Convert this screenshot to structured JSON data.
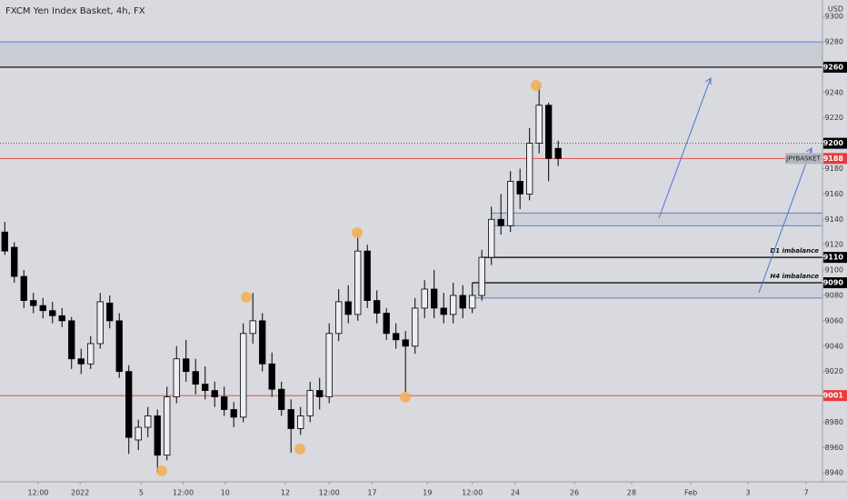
{
  "chart_data": {
    "type": "candlestick",
    "title": "FXCM Yen Index Basket, 4h, FX",
    "y_unit": "USD",
    "xlim": [
      -0.5,
      85.7
    ],
    "xticks": [
      {
        "value": 3.5,
        "label": "12:00"
      },
      {
        "value": 7.9,
        "label": "2022"
      },
      {
        "value": 14.3,
        "label": "5"
      },
      {
        "value": 18.7,
        "label": "12:00"
      },
      {
        "value": 23.1,
        "label": "10"
      },
      {
        "value": 29.4,
        "label": "12"
      },
      {
        "value": 34,
        "label": "12:00"
      },
      {
        "value": 38.5,
        "label": "17"
      },
      {
        "value": 44.3,
        "label": "19"
      },
      {
        "value": 49,
        "label": "12:00"
      },
      {
        "value": 53.5,
        "label": "24"
      },
      {
        "value": 59.7,
        "label": "26"
      },
      {
        "value": 65.7,
        "label": "28"
      },
      {
        "value": 71.9,
        "label": "Feb"
      },
      {
        "value": 77.9,
        "label": "3"
      },
      {
        "value": 84,
        "label": "7"
      }
    ],
    "ylim": [
      8933,
      9313
    ],
    "yticks": [
      8940,
      8960,
      8980,
      9000,
      9020,
      9040,
      9060,
      9080,
      9100,
      9120,
      9140,
      9160,
      9180,
      9200,
      9220,
      9240,
      9260,
      9280,
      9300
    ],
    "up_color": "#eceef1",
    "down_color": "#000000",
    "open": [
      9130,
      9118,
      9095,
      9076,
      9072,
      9068,
      9064,
      9060,
      9030,
      9026,
      9042,
      9074,
      9060,
      9020,
      8966,
      8976,
      8985,
      8954,
      9000,
      9030,
      9020,
      9010,
      9005,
      9000,
      8990,
      8984,
      9050,
      9060,
      9026,
      9006,
      8990,
      8975,
      8985,
      9005,
      9000,
      9050,
      9075,
      9065,
      9115,
      9076,
      9066,
      9050,
      9045,
      9040,
      9070,
      9085,
      9070,
      9065,
      9080,
      9070,
      9080,
      9110,
      9140,
      9135,
      9170,
      9160,
      9200,
      9230,
      9196
    ],
    "high": [
      9138,
      9122,
      9100,
      9082,
      9078,
      9075,
      9070,
      9063,
      9038,
      9048,
      9082,
      9080,
      9066,
      9025,
      8982,
      8992,
      8990,
      9008,
      9040,
      9045,
      9030,
      9024,
      9012,
      9008,
      8996,
      9058,
      9082,
      9066,
      9035,
      9012,
      8998,
      8992,
      9012,
      9015,
      9058,
      9085,
      9088,
      9128,
      9120,
      9084,
      9070,
      9058,
      9052,
      9078,
      9092,
      9100,
      9082,
      9090,
      9088,
      9090,
      9116,
      9150,
      9160,
      9178,
      9180,
      9212,
      9245,
      9232,
      9202
    ],
    "low": [
      9112,
      9090,
      9070,
      9066,
      9062,
      9058,
      9055,
      9022,
      9018,
      9022,
      9038,
      9054,
      9015,
      8955,
      8958,
      8968,
      8940,
      8950,
      8995,
      9012,
      9002,
      8998,
      8992,
      8985,
      8976,
      8980,
      9042,
      9020,
      9000,
      8985,
      8956,
      8970,
      8980,
      8990,
      8995,
      9044,
      9058,
      9060,
      9070,
      9058,
      9045,
      9038,
      9004,
      9034,
      9062,
      9062,
      9058,
      9058,
      9062,
      9066,
      9076,
      9104,
      9128,
      9130,
      9148,
      9155,
      9192,
      9170,
      9182
    ],
    "close": [
      9115,
      9095,
      9076,
      9072,
      9068,
      9064,
      9060,
      9030,
      9026,
      9042,
      9075,
      9060,
      9020,
      8968,
      8976,
      8985,
      8954,
      9000,
      9030,
      9020,
      9010,
      9005,
      9000,
      8990,
      8984,
      9050,
      9060,
      9026,
      9006,
      8990,
      8975,
      8985,
      9005,
      9000,
      9050,
      9075,
      9065,
      9115,
      9076,
      9066,
      9050,
      9045,
      9040,
      9070,
      9085,
      9070,
      9065,
      9080,
      9070,
      9080,
      9110,
      9140,
      9135,
      9170,
      9160,
      9200,
      9230,
      9188,
      9188
    ],
    "zones": [
      {
        "from": 9260,
        "to": 9280,
        "color": "#c3c6cd"
      },
      {
        "from": 9135,
        "to": 9145,
        "color": "#c9ccd4",
        "x0": 51
      },
      {
        "from": 9078,
        "to": 9090,
        "color": "#c9ccd4",
        "x0": 49
      }
    ],
    "levels": [
      {
        "value": 9280,
        "color": "#4a72d6"
      },
      {
        "value": 9260,
        "color": "#000000"
      },
      {
        "value": 9200,
        "color": "#555555",
        "dash": true
      },
      {
        "value": 9188,
        "color": "#e83b3b"
      },
      {
        "value": 9001,
        "color": "#e83b3b"
      },
      {
        "value": 9145,
        "color": "#4a72d6",
        "x0": 51
      },
      {
        "value": 9135,
        "color": "#4a72d6",
        "x0": 51
      },
      {
        "value": 9110,
        "color": "#000000",
        "x0": 50,
        "label": "D1 imbalance"
      },
      {
        "value": 9090,
        "color": "#000000",
        "x0": 49,
        "label": "H4 imbalance"
      },
      {
        "value": 9078,
        "color": "#4a72d6",
        "x0": 49
      }
    ],
    "price_tags": [
      {
        "value": 9260,
        "color": "#000000"
      },
      {
        "value": 9200,
        "color": "#000000"
      },
      {
        "value": 9188,
        "color": "#e83b3b",
        "name": "JPYBASKET"
      },
      {
        "value": 9110,
        "color": "#000000"
      },
      {
        "value": 9090,
        "color": "#000000"
      },
      {
        "value": 9001,
        "color": "#e83b3b"
      }
    ]
  }
}
